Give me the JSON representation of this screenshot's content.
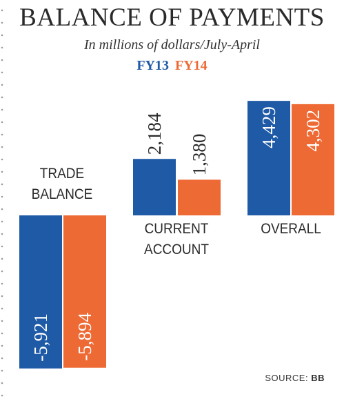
{
  "chart_data": {
    "type": "bar",
    "title": "BALANCE OF PAYMENTS",
    "subtitle": "In millions of dollars/July-April",
    "categories": [
      {
        "name": "trade-balance",
        "lines": [
          "TRADE",
          "BALANCE"
        ]
      },
      {
        "name": "current-account",
        "lines": [
          "CURRENT",
          "ACCOUNT"
        ]
      },
      {
        "name": "overall",
        "lines": [
          "OVERALL"
        ]
      }
    ],
    "series": [
      {
        "name": "FY13",
        "color": "#1f5aa6",
        "values": [
          -5921,
          2184,
          4429
        ],
        "labels": [
          "-5,921",
          "2,184",
          "4,429"
        ]
      },
      {
        "name": "FY14",
        "color": "#ee6a35",
        "values": [
          -5894,
          1380,
          4302
        ],
        "labels": [
          "-5,894",
          "1,380",
          "4,302"
        ]
      }
    ],
    "ylim": [
      -6000,
      4600
    ]
  },
  "source": {
    "prefix": "SOURCE:",
    "name": "BB"
  }
}
